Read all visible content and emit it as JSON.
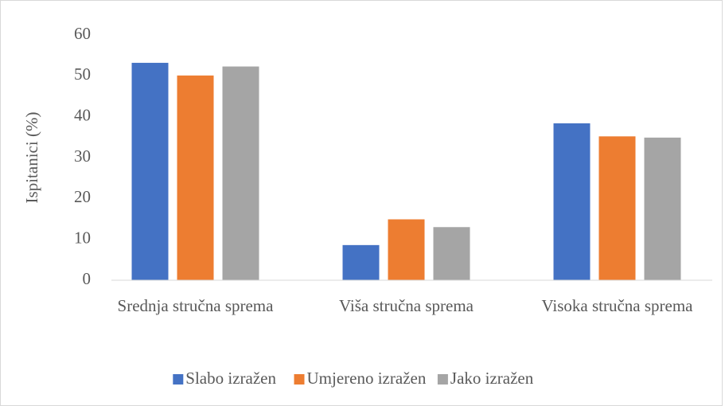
{
  "chart_data": {
    "type": "bar",
    "y_label": "Ispitanici (%)",
    "categories": [
      "Srednja stručna sprema",
      "Viša stručna sprema",
      "Visoka stručna sprema"
    ],
    "series": [
      {
        "name": "Slabo izražen",
        "color": "#4472c4",
        "values": [
          53.2,
          8.6,
          38.4
        ]
      },
      {
        "name": "Umjereno izražen",
        "color": "#ed7d31",
        "values": [
          50.1,
          14.9,
          35.2
        ]
      },
      {
        "name": "Jako izražen",
        "color": "#a5a5a5",
        "values": [
          52.3,
          13.0,
          34.9
        ]
      }
    ],
    "ylim": [
      0,
      60
    ],
    "yticks": [
      0,
      10,
      20,
      30,
      40,
      50,
      60
    ],
    "grid": false,
    "legend": "bottom"
  }
}
